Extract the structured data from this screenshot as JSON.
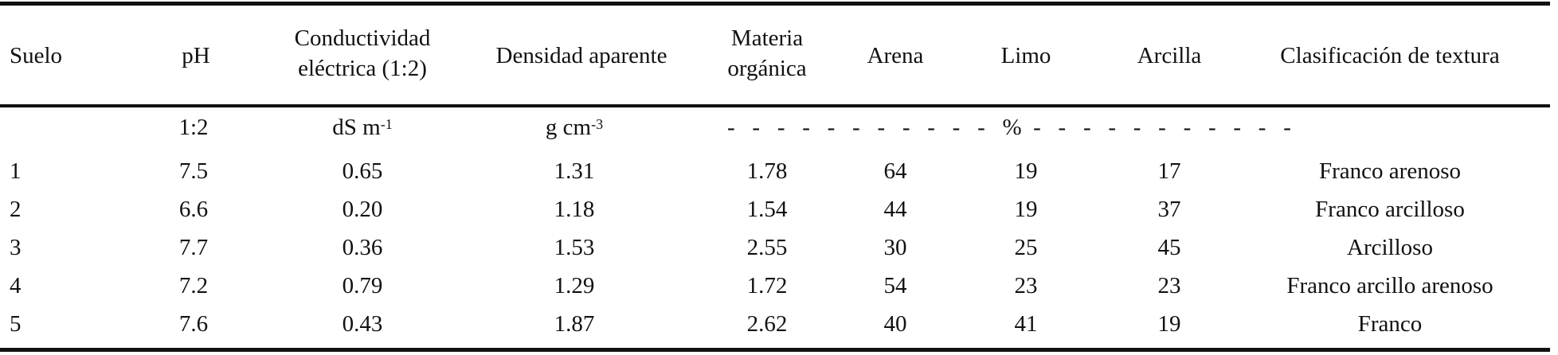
{
  "table": {
    "columns": [
      {
        "label_lines": [
          "Suelo"
        ],
        "unit": "",
        "unit_sup": ""
      },
      {
        "label_lines": [
          "pH"
        ],
        "unit": "1:2",
        "unit_sup": ""
      },
      {
        "label_lines": [
          "Conductividad",
          "eléctrica (1:2)"
        ],
        "unit": "dS m",
        "unit_sup": "-1"
      },
      {
        "label_lines": [
          "Densidad aparente"
        ],
        "unit": "g cm",
        "unit_sup": "-3"
      },
      {
        "label_lines": [
          "Materia",
          "orgánica"
        ],
        "unit": "",
        "unit_sup": ""
      },
      {
        "label_lines": [
          "Arena"
        ],
        "unit": "",
        "unit_sup": ""
      },
      {
        "label_lines": [
          "Limo"
        ],
        "unit": "",
        "unit_sup": ""
      },
      {
        "label_lines": [
          "Arcilla"
        ],
        "unit": "",
        "unit_sup": ""
      },
      {
        "label_lines": [
          "Clasificación de textura"
        ],
        "unit": "",
        "unit_sup": ""
      }
    ],
    "percent_unit_row": "-   -   -   -   -   -   -   -   -   -   -   %  -   -   -   -   -   -   -   -   -   -   -",
    "rows": [
      [
        "1",
        "7.5",
        "0.65",
        "1.31",
        "1.78",
        "64",
        "19",
        "17",
        "Franco arenoso"
      ],
      [
        "2",
        "6.6",
        "0.20",
        "1.18",
        "1.54",
        "44",
        "19",
        "37",
        "Franco arcilloso"
      ],
      [
        "3",
        "7.7",
        "0.36",
        "1.53",
        "2.55",
        "30",
        "25",
        "45",
        "Arcilloso"
      ],
      [
        "4",
        "7.2",
        "0.79",
        "1.29",
        "1.72",
        "54",
        "23",
        "23",
        "Franco arcillo arenoso"
      ],
      [
        "5",
        "7.6",
        "0.43",
        "1.87",
        "2.62",
        "40",
        "41",
        "19",
        "Franco"
      ]
    ]
  }
}
